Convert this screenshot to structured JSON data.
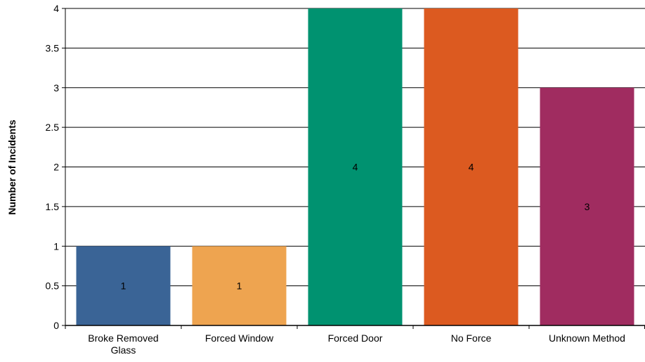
{
  "chart_data": {
    "type": "bar",
    "title": "",
    "xlabel": "",
    "ylabel": "Number of Incidents",
    "ylim": [
      0,
      4
    ],
    "yticks": [
      "0",
      "0.5",
      "1",
      "1.5",
      "2",
      "2.5",
      "3",
      "3.5",
      "4"
    ],
    "grid": true,
    "legend": "none",
    "categories": [
      [
        "Broke Removed",
        "Glass"
      ],
      [
        "Forced Window"
      ],
      [
        "Forced Door"
      ],
      [
        "No Force"
      ],
      [
        "Unknown Method"
      ]
    ],
    "values": [
      1,
      1,
      4,
      4,
      3
    ],
    "data_labels": [
      "1",
      "1",
      "4",
      "4",
      "3"
    ],
    "colors": [
      "#3a6496",
      "#eea450",
      "#009270",
      "#dc5a20",
      "#a02c60"
    ]
  }
}
